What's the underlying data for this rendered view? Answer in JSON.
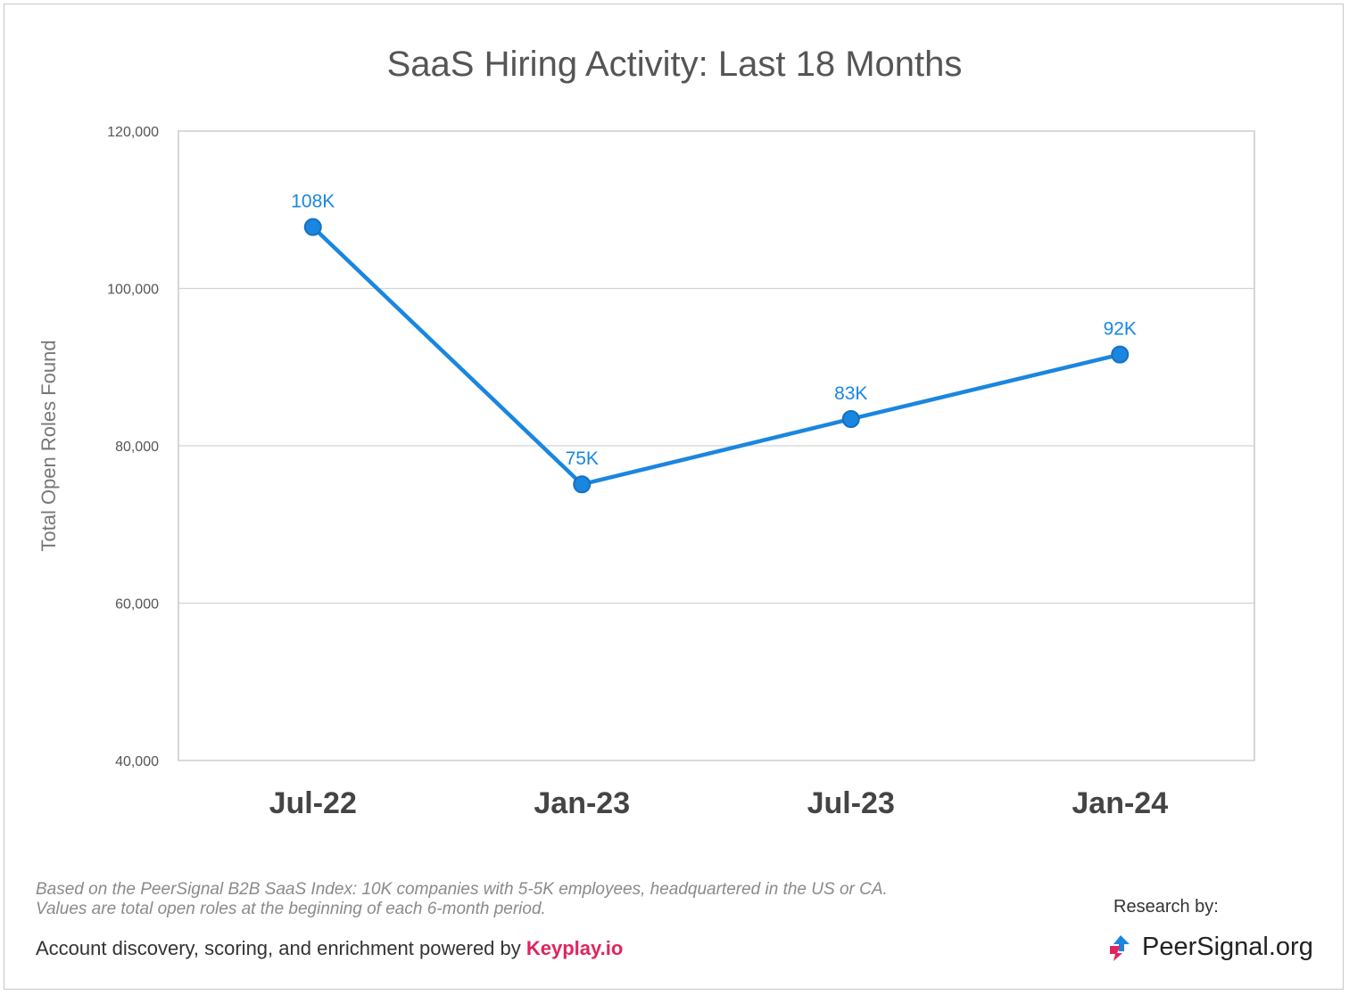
{
  "chart_data": {
    "type": "line",
    "title": "SaaS Hiring Activity: Last 18 Months",
    "ylabel": "Total Open Roles Found",
    "xlabel": "",
    "categories": [
      "Jul-22",
      "Jan-23",
      "Jul-23",
      "Jan-24"
    ],
    "series": [
      {
        "values": [
          107800,
          75100,
          83400,
          91600
        ],
        "data_labels": [
          "108K",
          "75K",
          "83K",
          "92K"
        ],
        "color": "#1a86e0"
      }
    ],
    "ylim": [
      40000,
      120000
    ],
    "yticks": [
      40000,
      60000,
      80000,
      100000,
      120000
    ],
    "ytick_labels": [
      "40,000",
      "60,000",
      "80,000",
      "100,000",
      "120,000"
    ],
    "grid": true,
    "legend": "none"
  },
  "footer": {
    "note": "Based on the PeerSignal B2B SaaS Index: 10K companies with 5-5K employees, headquartered in the US or CA. Values are total open roles at the beginning of each 6-month period.",
    "powered_prefix": "Account discovery, scoring, and enrichment powered by ",
    "powered_brand": "Keyplay.io",
    "research_label": "Research by:",
    "logo_text": "PeerSignal.org"
  },
  "colors": {
    "line": "#1a86e0",
    "brand_pink": "#e0245e",
    "logo_blue": "#1a86e0",
    "logo_red": "#e0245e"
  }
}
